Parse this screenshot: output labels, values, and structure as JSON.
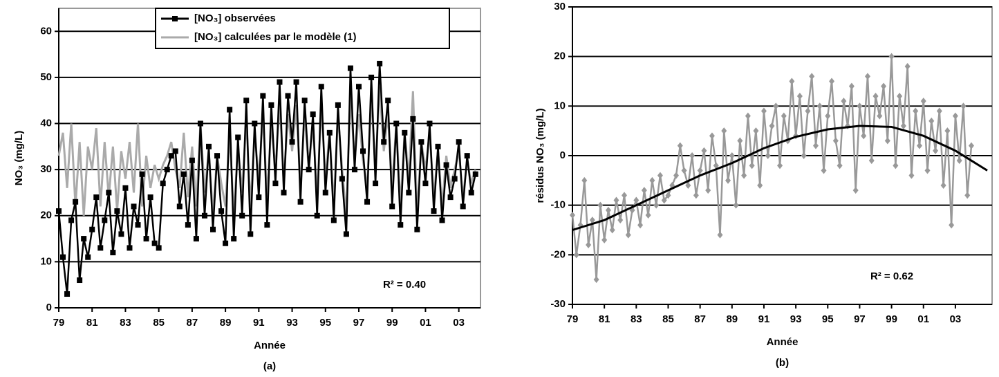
{
  "chart_data": [
    {
      "type": "line",
      "caption": "(a)",
      "xlabel": "Année",
      "ylabel": "NO₃ (mg/L)",
      "annotation": "R² = 0.40",
      "legend": "upper center",
      "grid": true,
      "xlim": [
        1979,
        2004.3
      ],
      "ylim": [
        0,
        65
      ],
      "xticks": [
        {
          "value": 1979,
          "label": "79"
        },
        {
          "value": 1981,
          "label": "81"
        },
        {
          "value": 1983,
          "label": "83"
        },
        {
          "value": 1985,
          "label": "85"
        },
        {
          "value": 1987,
          "label": "87"
        },
        {
          "value": 1989,
          "label": "89"
        },
        {
          "value": 1991,
          "label": "91"
        },
        {
          "value": 1993,
          "label": "93"
        },
        {
          "value": 1995,
          "label": "95"
        },
        {
          "value": 1997,
          "label": "97"
        },
        {
          "value": 1999,
          "label": "99"
        },
        {
          "value": 2001,
          "label": "01"
        },
        {
          "value": 2003,
          "label": "03"
        }
      ],
      "yticks": [
        0,
        10,
        20,
        30,
        40,
        50,
        60
      ],
      "x": [
        1979,
        1979.25,
        1979.5,
        1979.75,
        1980,
        1980.25,
        1980.5,
        1980.75,
        1981,
        1981.25,
        1981.5,
        1981.75,
        1982,
        1982.25,
        1982.5,
        1982.75,
        1983,
        1983.25,
        1983.5,
        1983.75,
        1984,
        1984.25,
        1984.5,
        1984.75,
        1985,
        1985.25,
        1985.5,
        1985.75,
        1986,
        1986.25,
        1986.5,
        1986.75,
        1987,
        1987.25,
        1987.5,
        1987.75,
        1988,
        1988.25,
        1988.5,
        1988.75,
        1989,
        1989.25,
        1989.5,
        1989.75,
        1990,
        1990.25,
        1990.5,
        1990.75,
        1991,
        1991.25,
        1991.5,
        1991.75,
        1992,
        1992.25,
        1992.5,
        1992.75,
        1993,
        1993.25,
        1993.5,
        1993.75,
        1994,
        1994.25,
        1994.5,
        1994.75,
        1995,
        1995.25,
        1995.5,
        1995.75,
        1996,
        1996.25,
        1996.5,
        1996.75,
        1997,
        1997.25,
        1997.5,
        1997.75,
        1998,
        1998.25,
        1998.5,
        1998.75,
        1999,
        1999.25,
        1999.5,
        1999.75,
        2000,
        2000.25,
        2000.5,
        2000.75,
        2001,
        2001.25,
        2001.5,
        2001.75,
        2002,
        2002.25,
        2002.5,
        2002.75,
        2003,
        2003.25,
        2003.5,
        2003.75,
        2004
      ],
      "series": [
        {
          "name": "[NO₃] calculées par le modèle (1)",
          "color": "#aaaaaa",
          "values": [
            33,
            38,
            26,
            40,
            22,
            36,
            20,
            35,
            30,
            39,
            22,
            36,
            24,
            35,
            21,
            34,
            28,
            36,
            25,
            40,
            22,
            33,
            26,
            31,
            28,
            31,
            33,
            36,
            30,
            26,
            38,
            24,
            35,
            22,
            40,
            25,
            34,
            20,
            33,
            27,
            22,
            38,
            20,
            35,
            25,
            41,
            22,
            38,
            28,
            42,
            24,
            40,
            30,
            45,
            27,
            42,
            34,
            44,
            26,
            42,
            30,
            40,
            24,
            44,
            28,
            38,
            22,
            42,
            30,
            20,
            46,
            32,
            42,
            32,
            26,
            46,
            30,
            48,
            34,
            42,
            26,
            40,
            22,
            38,
            28,
            47,
            20,
            36,
            30,
            38,
            24,
            34,
            22,
            33,
            26,
            30,
            34,
            24,
            32,
            27,
            30
          ]
        },
        {
          "name": "[NO₃] observées",
          "color": "#000000",
          "marker": "square",
          "values": [
            21,
            11,
            3,
            19,
            23,
            6,
            15,
            11,
            17,
            24,
            13,
            19,
            25,
            12,
            21,
            16,
            26,
            13,
            22,
            18,
            29,
            15,
            24,
            14,
            13,
            27,
            30,
            33,
            34,
            22,
            29,
            18,
            32,
            15,
            40,
            20,
            35,
            17,
            33,
            21,
            14,
            43,
            15,
            37,
            20,
            45,
            16,
            40,
            24,
            46,
            18,
            44,
            27,
            49,
            25,
            46,
            36,
            49,
            23,
            45,
            30,
            42,
            20,
            48,
            25,
            38,
            19,
            44,
            28,
            16,
            52,
            30,
            48,
            34,
            23,
            50,
            27,
            53,
            36,
            45,
            22,
            40,
            18,
            38,
            25,
            41,
            17,
            36,
            27,
            40,
            21,
            35,
            19,
            31,
            24,
            28,
            36,
            22,
            33,
            25,
            29
          ]
        }
      ]
    },
    {
      "type": "line",
      "caption": "(b)",
      "xlabel": "Année",
      "ylabel": "résidus NO₃ (mg/L)",
      "annotation": "R² = 0.62",
      "grid": true,
      "xlim": [
        1979,
        2005.3
      ],
      "ylim": [
        -30,
        30
      ],
      "xticks": [
        {
          "value": 1979,
          "label": "79"
        },
        {
          "value": 1981,
          "label": "81"
        },
        {
          "value": 1983,
          "label": "83"
        },
        {
          "value": 1985,
          "label": "85"
        },
        {
          "value": 1987,
          "label": "87"
        },
        {
          "value": 1989,
          "label": "89"
        },
        {
          "value": 1991,
          "label": "91"
        },
        {
          "value": 1993,
          "label": "93"
        },
        {
          "value": 1995,
          "label": "95"
        },
        {
          "value": 1997,
          "label": "97"
        },
        {
          "value": 1999,
          "label": "99"
        },
        {
          "value": 2001,
          "label": "01"
        },
        {
          "value": 2003,
          "label": "03"
        }
      ],
      "yticks": [
        -30,
        -20,
        -10,
        0,
        10,
        20,
        30
      ],
      "x": [
        1979,
        1979.25,
        1979.5,
        1979.75,
        1980,
        1980.25,
        1980.5,
        1980.75,
        1981,
        1981.25,
        1981.5,
        1981.75,
        1982,
        1982.25,
        1982.5,
        1982.75,
        1983,
        1983.25,
        1983.5,
        1983.75,
        1984,
        1984.25,
        1984.5,
        1984.75,
        1985,
        1985.25,
        1985.5,
        1985.75,
        1986,
        1986.25,
        1986.5,
        1986.75,
        1987,
        1987.25,
        1987.5,
        1987.75,
        1988,
        1988.25,
        1988.5,
        1988.75,
        1989,
        1989.25,
        1989.5,
        1989.75,
        1990,
        1990.25,
        1990.5,
        1990.75,
        1991,
        1991.25,
        1991.5,
        1991.75,
        1992,
        1992.25,
        1992.5,
        1992.75,
        1993,
        1993.25,
        1993.5,
        1993.75,
        1994,
        1994.25,
        1994.5,
        1994.75,
        1995,
        1995.25,
        1995.5,
        1995.75,
        1996,
        1996.25,
        1996.5,
        1996.75,
        1997,
        1997.25,
        1997.5,
        1997.75,
        1998,
        1998.25,
        1998.5,
        1998.75,
        1999,
        1999.25,
        1999.5,
        1999.75,
        2000,
        2000.25,
        2000.5,
        2000.75,
        2001,
        2001.25,
        2001.5,
        2001.75,
        2002,
        2002.25,
        2002.5,
        2002.75,
        2003,
        2003.25,
        2003.5,
        2003.75,
        2004
      ],
      "series": [
        {
          "color": "#999999",
          "marker": "diamond",
          "values": [
            -12,
            -20,
            -14,
            -5,
            -18,
            -13,
            -25,
            -10,
            -17,
            -11,
            -15,
            -9,
            -13,
            -8,
            -16,
            -11,
            -9,
            -14,
            -7,
            -12,
            -5,
            -10,
            -4,
            -9,
            -8,
            -6,
            -4,
            2,
            -3,
            -6,
            0,
            -8,
            -3,
            1,
            -7,
            4,
            -2,
            -16,
            5,
            -5,
            0,
            -10,
            3,
            -4,
            8,
            -2,
            5,
            -6,
            9,
            0,
            6,
            10,
            -2,
            8,
            3,
            15,
            4,
            12,
            0,
            9,
            16,
            2,
            10,
            -3,
            8,
            15,
            3,
            -2,
            11,
            6,
            14,
            -7,
            10,
            4,
            16,
            -1,
            12,
            8,
            14,
            3,
            20,
            -2,
            12,
            6,
            18,
            -4,
            9,
            2,
            11,
            -3,
            7,
            1,
            9,
            -6,
            5,
            -14,
            8,
            -1,
            10,
            -8,
            2
          ]
        },
        {
          "color": "#000000",
          "x": [
            1979,
            1981,
            1983,
            1985,
            1987,
            1989,
            1991,
            1993,
            1995,
            1997,
            1999,
            2001,
            2003,
            2005
          ],
          "values": [
            -15,
            -13,
            -10,
            -7,
            -4,
            -1.5,
            1.5,
            3.8,
            5.3,
            6,
            5.8,
            4,
            1,
            -3
          ]
        }
      ]
    }
  ]
}
